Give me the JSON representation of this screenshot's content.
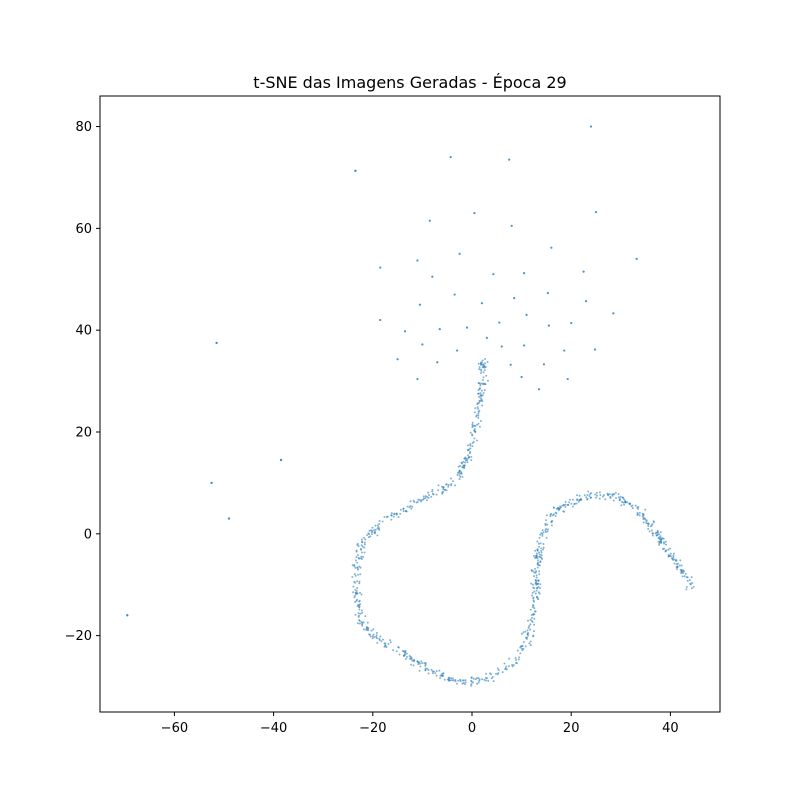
{
  "chart_data": {
    "type": "scatter",
    "title": "t-SNE das Imagens Geradas - Época 29",
    "xlabel": "",
    "ylabel": "",
    "xlim": [
      -75,
      50
    ],
    "ylim": [
      -35,
      86
    ],
    "xticks": [
      -60,
      -40,
      -20,
      0,
      20,
      40
    ],
    "yticks": [
      -20,
      0,
      20,
      40,
      60,
      80
    ],
    "xtick_labels": [
      "−60",
      "−40",
      "−20",
      "0",
      "20",
      "40"
    ],
    "ytick_labels": [
      "−20",
      "0",
      "20",
      "40",
      "60",
      "80"
    ],
    "grid": false,
    "legend": "none",
    "marker_color": "#1f77b4",
    "marker_alpha": 0.6,
    "outliers": [
      [
        -69.5,
        -16
      ],
      [
        -52.5,
        10
      ],
      [
        -49,
        3
      ],
      [
        -38.5,
        14.5
      ],
      [
        -51.5,
        37.5
      ],
      [
        -23.5,
        71.3
      ]
    ],
    "cluster_points": [
      [
        -4.3,
        74
      ],
      [
        7.5,
        73.5
      ],
      [
        24,
        80
      ],
      [
        0.5,
        63
      ],
      [
        -8.5,
        61.5
      ],
      [
        8,
        60.5
      ],
      [
        25,
        63.2
      ],
      [
        -18.5,
        52.3
      ],
      [
        -11,
        53.7
      ],
      [
        -8,
        50.5
      ],
      [
        -2.5,
        55
      ],
      [
        4.3,
        51
      ],
      [
        10.5,
        51.2
      ],
      [
        16,
        56.2
      ],
      [
        22.5,
        51.5
      ],
      [
        33.2,
        54
      ],
      [
        -10.5,
        45
      ],
      [
        -3.5,
        47
      ],
      [
        2,
        45.3
      ],
      [
        8.5,
        46.3
      ],
      [
        11,
        43
      ],
      [
        15.3,
        47.3
      ],
      [
        23,
        45.7
      ],
      [
        28.5,
        43.3
      ],
      [
        -18.5,
        42
      ],
      [
        -13.5,
        39.8
      ],
      [
        -6.5,
        40.2
      ],
      [
        -1,
        40.5
      ],
      [
        5.5,
        41.5
      ],
      [
        10.5,
        37
      ],
      [
        15.5,
        40.9
      ],
      [
        20,
        41.4
      ],
      [
        -15,
        34.3
      ],
      [
        -10,
        37.2
      ],
      [
        -7,
        33.7
      ],
      [
        -3,
        36
      ],
      [
        3,
        38.5
      ],
      [
        6,
        36.8
      ],
      [
        7.8,
        33.2
      ],
      [
        14.5,
        33.3
      ],
      [
        18.6,
        36
      ],
      [
        24.8,
        36.2
      ],
      [
        -11,
        30.4
      ],
      [
        10,
        30.8
      ],
      [
        13.5,
        28.4
      ],
      [
        19.3,
        30.4
      ]
    ],
    "curve_path": [
      [
        2.3,
        34.3
      ],
      [
        2.2,
        31
      ],
      [
        1.8,
        28
      ],
      [
        1.3,
        25
      ],
      [
        0.8,
        22
      ],
      [
        0.2,
        19
      ],
      [
        -0.6,
        16
      ],
      [
        -1.5,
        14
      ],
      [
        -2.5,
        12
      ],
      [
        -3.6,
        10.8
      ],
      [
        -4.8,
        9.6
      ],
      [
        -6,
        8.8
      ],
      [
        -7.3,
        8
      ],
      [
        -9,
        7.5
      ],
      [
        -11,
        6.2
      ],
      [
        -12.8,
        5
      ],
      [
        -14.3,
        4.2
      ],
      [
        -16,
        3.6
      ],
      [
        -17.5,
        2.8
      ],
      [
        -19,
        1.5
      ],
      [
        -20.5,
        0.2
      ],
      [
        -22,
        -1.8
      ],
      [
        -22.8,
        -4
      ],
      [
        -23.2,
        -7
      ],
      [
        -23.4,
        -10
      ],
      [
        -23.2,
        -13
      ],
      [
        -22.5,
        -16
      ],
      [
        -21.5,
        -18.5
      ],
      [
        -19.5,
        -20
      ],
      [
        -17,
        -21.8
      ],
      [
        -14.5,
        -23
      ],
      [
        -12,
        -25
      ],
      [
        -9.5,
        -26.2
      ],
      [
        -7,
        -27.8
      ],
      [
        -4.5,
        -28.5
      ],
      [
        -2,
        -28.8
      ],
      [
        0.5,
        -28.8
      ],
      [
        3,
        -28.5
      ],
      [
        5,
        -27.6
      ],
      [
        7,
        -26.5
      ],
      [
        9,
        -24.5
      ],
      [
        10.5,
        -22
      ],
      [
        11.5,
        -19
      ],
      [
        12.2,
        -16
      ],
      [
        12.6,
        -13
      ],
      [
        12.9,
        -10
      ],
      [
        13,
        -7
      ],
      [
        13.2,
        -4
      ],
      [
        13.8,
        -1
      ],
      [
        14.8,
        1.5
      ],
      [
        16,
        3.3
      ],
      [
        17.5,
        4.8
      ],
      [
        19.5,
        6
      ],
      [
        22,
        7
      ],
      [
        24.5,
        7.8
      ],
      [
        27,
        7.8
      ],
      [
        29.5,
        7
      ],
      [
        32,
        5.8
      ],
      [
        34.5,
        3.5
      ],
      [
        36.5,
        1
      ],
      [
        38.2,
        -1.5
      ],
      [
        40,
        -4
      ],
      [
        41.8,
        -6.5
      ],
      [
        43.2,
        -8.5
      ],
      [
        44,
        -9.5
      ],
      [
        44.2,
        -10.5
      ]
    ],
    "curve_point_count": 900
  }
}
